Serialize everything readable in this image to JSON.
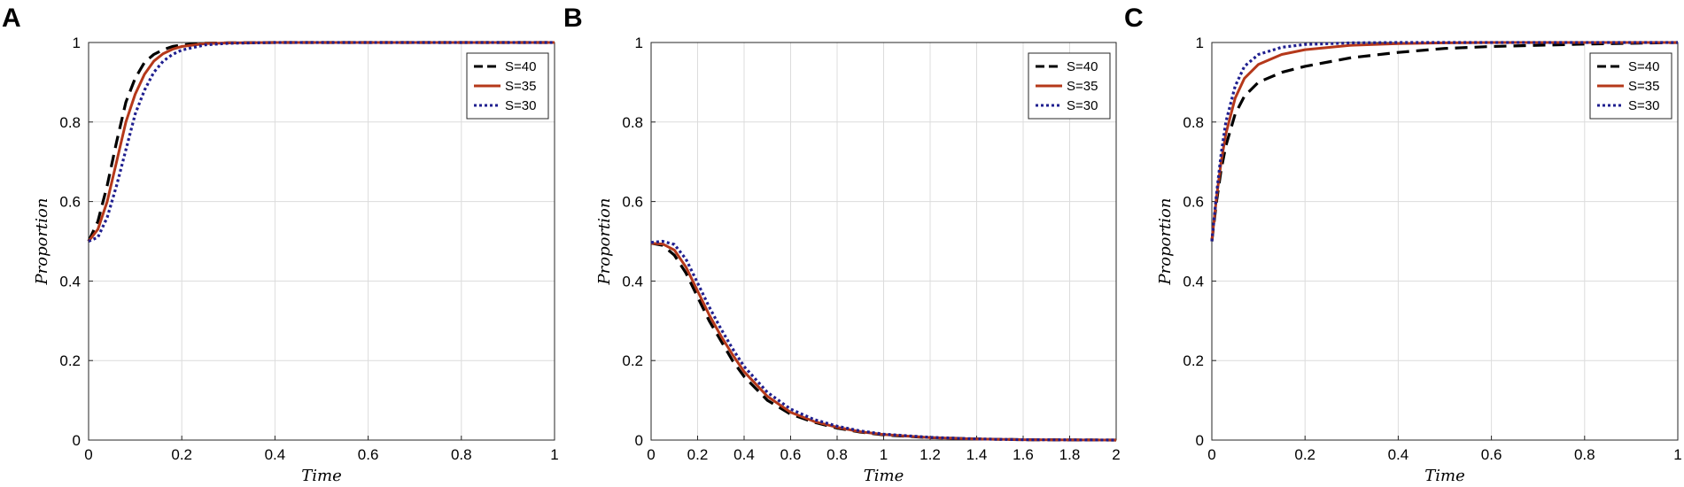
{
  "figure": {
    "colors": {
      "S40": "#000000",
      "S35": "#b5381a",
      "S30": "#1f1f8f",
      "grid": "#dcdcdc",
      "axis": "#262626"
    }
  },
  "chart_data": [
    {
      "panel": "A",
      "type": "line",
      "xlabel": "Time",
      "ylabel": "Proportion",
      "xlim": [
        0,
        1
      ],
      "ylim": [
        0,
        1
      ],
      "xticks": [
        "0",
        "0.2",
        "0.4",
        "0.6",
        "0.8",
        "1"
      ],
      "yticks": [
        "0",
        "0.2",
        "0.4",
        "0.6",
        "0.8",
        "1"
      ],
      "grid": true,
      "legend_position": "top-right",
      "series": [
        {
          "name": "S=40",
          "style": "dashed",
          "color": "#000000",
          "x": [
            0,
            0.02,
            0.04,
            0.06,
            0.08,
            0.1,
            0.12,
            0.14,
            0.16,
            0.18,
            0.2,
            0.25,
            0.3,
            0.4,
            0.6,
            0.8,
            1
          ],
          "y": [
            0.5,
            0.55,
            0.64,
            0.75,
            0.85,
            0.91,
            0.95,
            0.97,
            0.982,
            0.99,
            0.994,
            0.998,
            0.999,
            1,
            1,
            1,
            1
          ]
        },
        {
          "name": "S=35",
          "style": "solid",
          "color": "#b5381a",
          "x": [
            0,
            0.02,
            0.04,
            0.06,
            0.08,
            0.1,
            0.12,
            0.14,
            0.16,
            0.18,
            0.2,
            0.25,
            0.3,
            0.4,
            0.6,
            0.8,
            1
          ],
          "y": [
            0.5,
            0.53,
            0.6,
            0.7,
            0.8,
            0.87,
            0.92,
            0.953,
            0.972,
            0.983,
            0.99,
            0.997,
            0.999,
            1,
            1,
            1,
            1
          ]
        },
        {
          "name": "S=30",
          "style": "dotted",
          "color": "#1f1f8f",
          "x": [
            0,
            0.02,
            0.04,
            0.06,
            0.08,
            0.1,
            0.12,
            0.14,
            0.16,
            0.18,
            0.2,
            0.25,
            0.3,
            0.4,
            0.6,
            0.8,
            1
          ],
          "y": [
            0.5,
            0.51,
            0.56,
            0.64,
            0.73,
            0.82,
            0.88,
            0.925,
            0.953,
            0.97,
            0.981,
            0.994,
            0.998,
            1,
            1,
            1,
            1
          ]
        }
      ]
    },
    {
      "panel": "B",
      "type": "line",
      "xlabel": "Time",
      "ylabel": "Proportion",
      "xlim": [
        0,
        2
      ],
      "ylim": [
        0,
        1
      ],
      "xticks": [
        "0",
        "0.2",
        "0.4",
        "0.6",
        "0.8",
        "1",
        "1.2",
        "1.4",
        "1.6",
        "1.8",
        "2"
      ],
      "yticks": [
        "0",
        "0.2",
        "0.4",
        "0.6",
        "0.8",
        "1"
      ],
      "grid": true,
      "legend_position": "top-right",
      "series": [
        {
          "name": "S=40",
          "style": "dashed",
          "color": "#000000",
          "x": [
            0,
            0.05,
            0.1,
            0.15,
            0.2,
            0.25,
            0.3,
            0.35,
            0.4,
            0.5,
            0.6,
            0.7,
            0.8,
            0.9,
            1.0,
            1.2,
            1.4,
            1.6,
            2
          ],
          "y": [
            0.495,
            0.49,
            0.465,
            0.42,
            0.36,
            0.3,
            0.25,
            0.2,
            0.16,
            0.1,
            0.065,
            0.045,
            0.03,
            0.02,
            0.013,
            0.006,
            0.003,
            0.001,
            0
          ]
        },
        {
          "name": "S=35",
          "style": "solid",
          "color": "#b5381a",
          "x": [
            0,
            0.05,
            0.1,
            0.15,
            0.2,
            0.25,
            0.3,
            0.35,
            0.4,
            0.5,
            0.6,
            0.7,
            0.8,
            0.9,
            1.0,
            1.2,
            1.4,
            1.6,
            2
          ],
          "y": [
            0.495,
            0.493,
            0.478,
            0.435,
            0.375,
            0.315,
            0.262,
            0.215,
            0.172,
            0.11,
            0.07,
            0.047,
            0.032,
            0.021,
            0.014,
            0.006,
            0.003,
            0.001,
            0
          ]
        },
        {
          "name": "S=30",
          "style": "dotted",
          "color": "#1f1f8f",
          "x": [
            0,
            0.05,
            0.1,
            0.15,
            0.2,
            0.25,
            0.3,
            0.35,
            0.4,
            0.5,
            0.6,
            0.7,
            0.8,
            0.9,
            1.0,
            1.2,
            1.4,
            1.6,
            2
          ],
          "y": [
            0.497,
            0.5,
            0.492,
            0.455,
            0.395,
            0.335,
            0.28,
            0.23,
            0.185,
            0.12,
            0.078,
            0.052,
            0.035,
            0.023,
            0.015,
            0.007,
            0.003,
            0.001,
            0
          ]
        }
      ]
    },
    {
      "panel": "C",
      "type": "line",
      "xlabel": "Time",
      "ylabel": "Proportion",
      "xlim": [
        0,
        1
      ],
      "ylim": [
        0,
        1
      ],
      "xticks": [
        "0",
        "0.2",
        "0.4",
        "0.6",
        "0.8",
        "1"
      ],
      "yticks": [
        "0",
        "0.2",
        "0.4",
        "0.6",
        "0.8",
        "1"
      ],
      "grid": true,
      "legend_position": "top-right",
      "series": [
        {
          "name": "S=40",
          "style": "dashed",
          "color": "#000000",
          "x": [
            0,
            0.01,
            0.02,
            0.03,
            0.05,
            0.07,
            0.1,
            0.15,
            0.2,
            0.3,
            0.4,
            0.5,
            0.6,
            0.8,
            1
          ],
          "y": [
            0.5,
            0.6,
            0.68,
            0.74,
            0.82,
            0.865,
            0.9,
            0.925,
            0.94,
            0.962,
            0.975,
            0.985,
            0.99,
            0.996,
            1
          ]
        },
        {
          "name": "S=35",
          "style": "solid",
          "color": "#b5381a",
          "x": [
            0,
            0.01,
            0.02,
            0.03,
            0.05,
            0.07,
            0.1,
            0.15,
            0.2,
            0.3,
            0.4,
            0.5,
            0.6,
            0.8,
            1
          ],
          "y": [
            0.5,
            0.61,
            0.7,
            0.77,
            0.86,
            0.91,
            0.945,
            0.97,
            0.982,
            0.993,
            0.997,
            0.999,
            1,
            1,
            1
          ]
        },
        {
          "name": "S=30",
          "style": "dotted",
          "color": "#1f1f8f",
          "x": [
            0,
            0.01,
            0.02,
            0.03,
            0.05,
            0.07,
            0.1,
            0.15,
            0.2,
            0.3,
            0.4,
            0.5,
            0.6,
            0.8,
            1
          ],
          "y": [
            0.5,
            0.62,
            0.72,
            0.8,
            0.89,
            0.94,
            0.97,
            0.988,
            0.995,
            0.999,
            1,
            1,
            1,
            1,
            1
          ]
        }
      ]
    }
  ]
}
